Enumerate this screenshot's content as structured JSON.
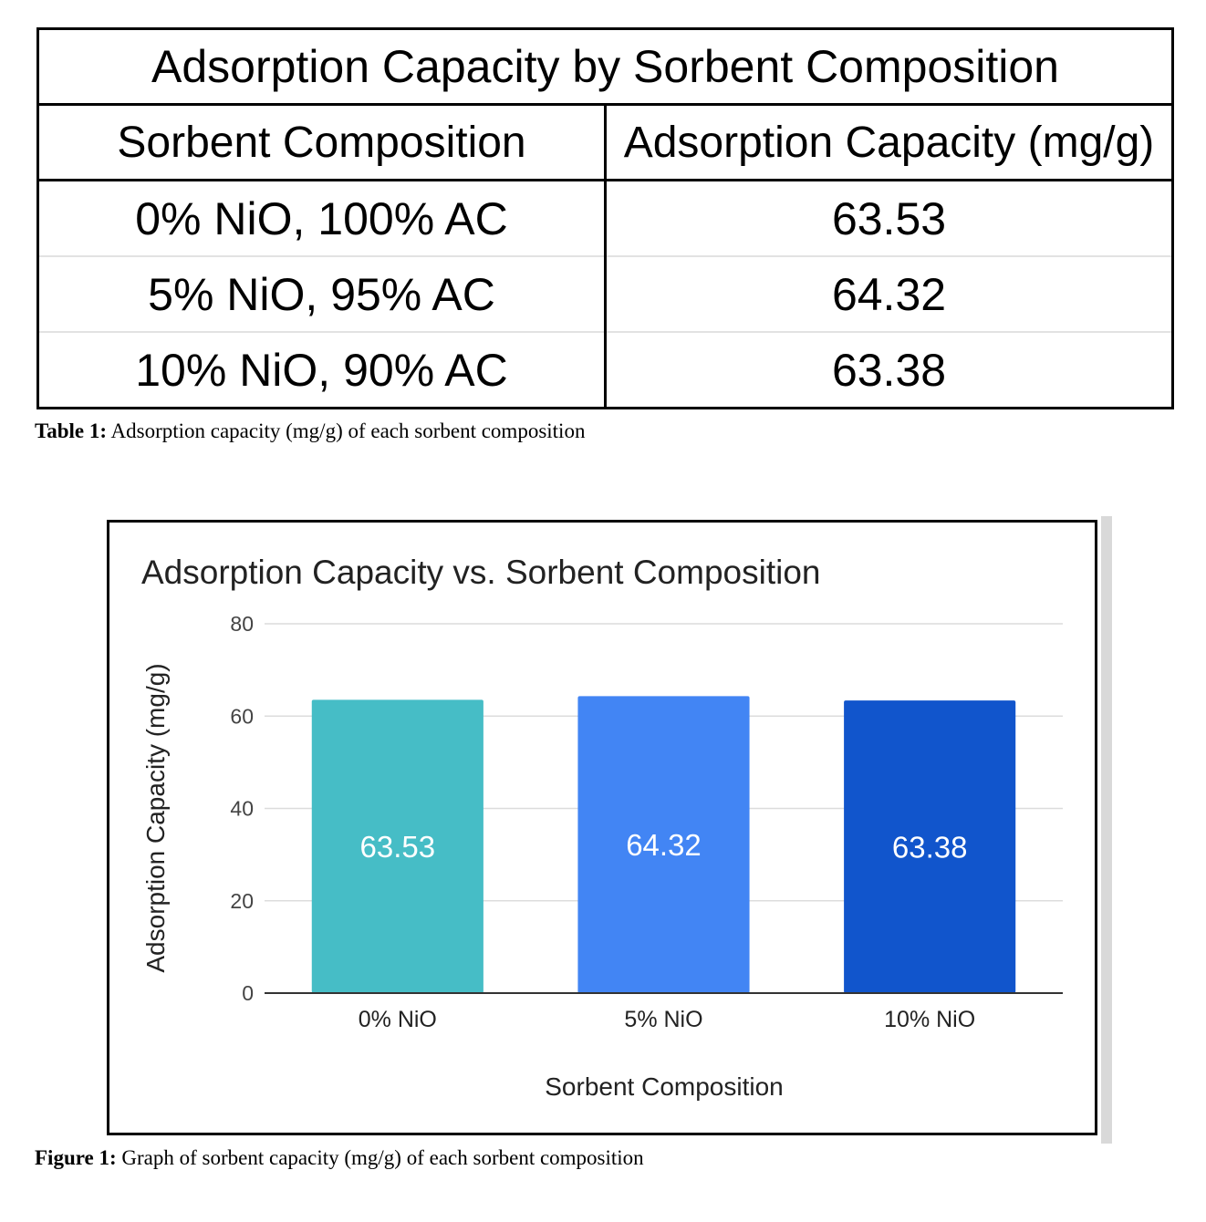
{
  "table": {
    "title": "Adsorption Capacity by Sorbent Composition",
    "headers": [
      "Sorbent Composition",
      "Adsorption Capacity (mg/g)"
    ],
    "rows": [
      [
        "0% NiO, 100% AC",
        "63.53"
      ],
      [
        "5% NiO, 95% AC",
        "64.32"
      ],
      [
        "10% NiO, 90% AC",
        "63.38"
      ]
    ],
    "caption_label": "Table 1:",
    "caption_text": " Adsorption capacity (mg/g) of each sorbent composition"
  },
  "figure": {
    "caption_label": "Figure 1:",
    "caption_text": " Graph of sorbent capacity (mg/g) of each sorbent composition"
  },
  "chart_data": {
    "type": "bar",
    "title": "Adsorption Capacity vs. Sorbent Composition",
    "xlabel": "Sorbent Composition",
    "ylabel": "Adsorption Capacity (mg/g)",
    "categories": [
      "0% NiO",
      "5% NiO",
      "10% NiO"
    ],
    "values": [
      63.53,
      64.32,
      63.38
    ],
    "data_labels": [
      "63.53",
      "64.32",
      "63.38"
    ],
    "colors": [
      "#46bdc6",
      "#4285f4",
      "#1155cc"
    ],
    "ylim": [
      0,
      80
    ],
    "yticks": [
      0,
      20,
      40,
      60,
      80
    ],
    "grid": true,
    "legend": "none"
  }
}
